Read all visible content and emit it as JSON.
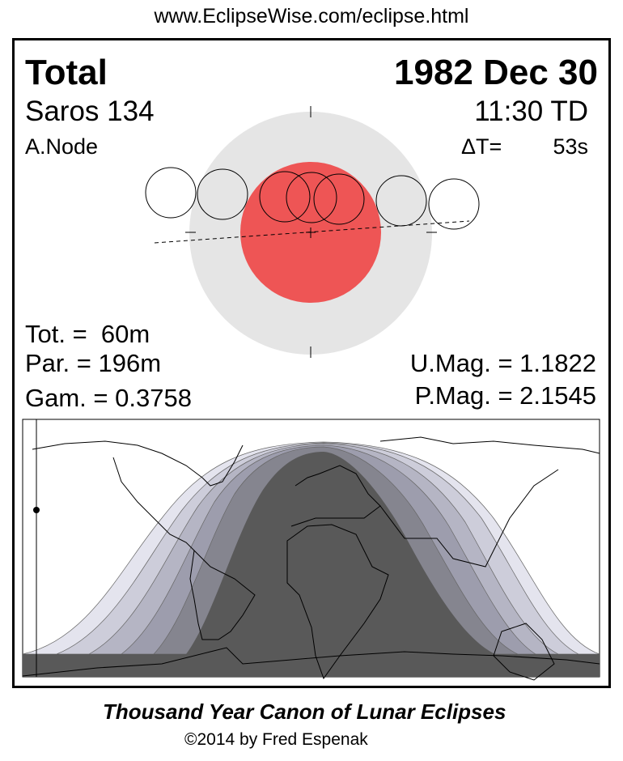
{
  "header_url": "www.EclipseWise.com/eclipse.html",
  "eclipse": {
    "type": "Total",
    "date": "1982 Dec 30",
    "saros": "Saros 134",
    "time": "11:30 TD",
    "node": "A.Node",
    "delta_t_label": "ΔT=",
    "delta_t_value": "53s",
    "tot": "Tot. =  60m",
    "par": "Par. = 196m",
    "gam": "Gam. = 0.3758",
    "umag": "U.Mag. = 1.1822",
    "pmag": "P.Mag. = 2.1545"
  },
  "colors": {
    "umbra": "#ee5555",
    "penumbra": "#e5e5e5",
    "visibility_zones": [
      "#e4e4ee",
      "#cdcdda",
      "#b5b5c4",
      "#9d9dad",
      "#85858f",
      "#595959"
    ]
  },
  "footer": {
    "title": "Thousand Year Canon of Lunar Eclipses",
    "copyright": "©2014 by Fred Espenak"
  }
}
